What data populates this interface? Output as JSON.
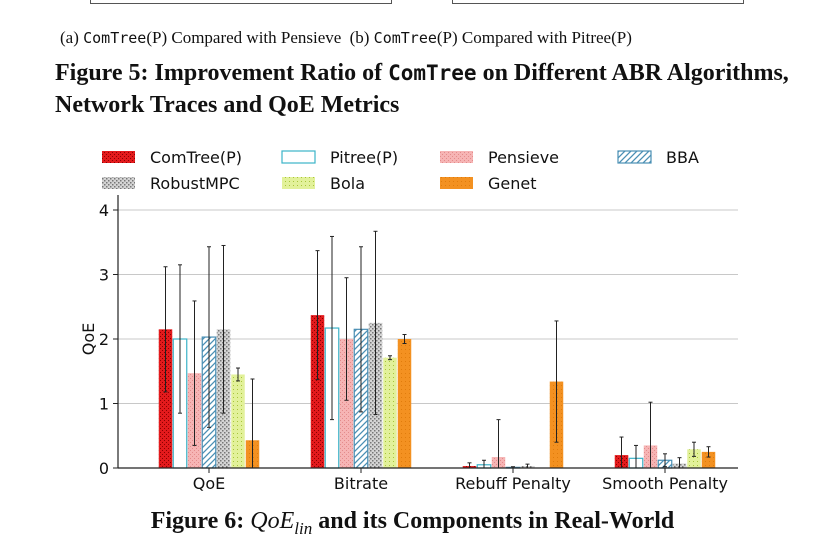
{
  "top_captions": {
    "a_prefix": "(a) ",
    "a_mono": "ComTree",
    "a_rest": "(P) Compared with Pensieve",
    "b_prefix": "(b) ",
    "b_mono": "ComTree",
    "b_rest": "(P) Compared with Pitree(P)"
  },
  "figure5": {
    "prefix": "Figure 5: Improvement Ratio of ",
    "mono": "ComTree",
    "suffix": " on Different ABR Algorithms, Network Traces and QoE Metrics"
  },
  "figure6": {
    "prefix": "Figure 6: ",
    "math_base": "QoE",
    "math_sub": "lin",
    "suffix": " and its Components in Real-World"
  },
  "chart_data": {
    "type": "bar",
    "categories": [
      "QoE",
      "Bitrate",
      "Rebuff Penalty",
      "Smooth Penalty"
    ],
    "ylabel": "QoE",
    "ylim": [
      0,
      4
    ],
    "yticks": [
      0,
      1,
      2,
      3,
      4
    ],
    "grid": "horizontal",
    "legend_position": "top",
    "series": [
      {
        "name": "ComTree(P)",
        "color": "#e31a1c",
        "pattern": "dense-red",
        "values": [
          2.15,
          2.37,
          0.03,
          0.2
        ],
        "errors": [
          0.97,
          1.0,
          0.05,
          0.28
        ]
      },
      {
        "name": "Pitree(P)",
        "color": "#3bb3c8",
        "pattern": "hollow",
        "values": [
          2.0,
          2.17,
          0.05,
          0.15
        ],
        "errors": [
          1.15,
          1.42,
          0.07,
          0.2
        ]
      },
      {
        "name": "Pensieve",
        "color": "#f4a8a8",
        "pattern": "light-dots",
        "values": [
          1.47,
          2.0,
          0.17,
          0.35
        ],
        "errors": [
          1.12,
          0.95,
          0.58,
          0.67
        ]
      },
      {
        "name": "BBA",
        "color": "#4a8fb4",
        "pattern": "diagonal",
        "values": [
          2.03,
          2.15,
          0.01,
          0.12
        ],
        "errors": [
          1.4,
          1.28,
          0.01,
          0.1
        ]
      },
      {
        "name": "RobustMPC",
        "color": "#999999",
        "pattern": "dotted-grey",
        "values": [
          2.15,
          2.25,
          0.03,
          0.07
        ],
        "errors": [
          1.3,
          1.42,
          0.03,
          0.09
        ]
      },
      {
        "name": "Bola",
        "color": "#c8e06a",
        "pattern": "light-green",
        "values": [
          1.45,
          1.71,
          0.0,
          0.29
        ],
        "errors": [
          0.1,
          0.03,
          0.0,
          0.11
        ]
      },
      {
        "name": "Genet",
        "color": "#f39121",
        "pattern": "solid-orange",
        "values": [
          0.43,
          2.0,
          1.34,
          0.25
        ],
        "errors": [
          0.95,
          0.07,
          0.94,
          0.08
        ]
      }
    ]
  }
}
